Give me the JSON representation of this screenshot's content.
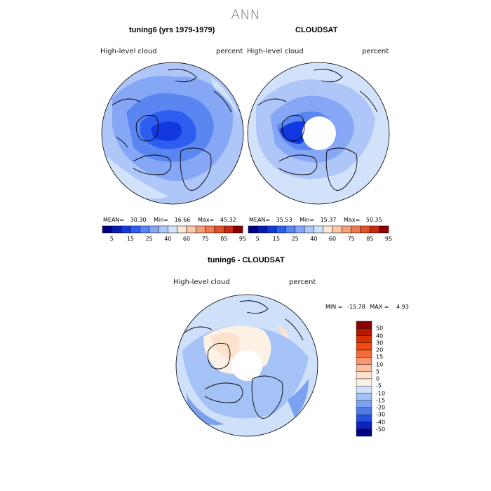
{
  "title": "ANN",
  "panels": [
    {
      "title": "tuning6 (yrs 1979-1979)",
      "variable": "High-level cloud",
      "units": "percent",
      "stats": {
        "mean_label": "MEAN=",
        "mean": "30.30",
        "min_label": "Min=",
        "min": "16.66",
        "max_label": "Max=",
        "max": "45.32"
      }
    },
    {
      "title": "CLOUDSAT",
      "variable": "High-level cloud",
      "units": "percent",
      "stats": {
        "mean_label": "MEAN=",
        "mean": "35.53",
        "min_label": "Min=",
        "min": "15.37",
        "max_label": "Max=",
        "max": "50.35"
      }
    },
    {
      "title": "tuning6 - CLOUDSAT",
      "variable": "High-level cloud",
      "units": "percent",
      "stats": {
        "min_label": "MIN =",
        "min": "-15.78",
        "max_label": "MAX =",
        "max": "4.93"
      }
    }
  ],
  "abs_colorbar": {
    "labels": [
      "5",
      "15",
      "25",
      "40",
      "60",
      "75",
      "85",
      "95"
    ],
    "colors": [
      "#000080",
      "#0a1ab4",
      "#1238e0",
      "#2d5ef0",
      "#5a86f2",
      "#86a7f5",
      "#aec6f8",
      "#d2e2fb",
      "#fbe7d6",
      "#f9c8a8",
      "#f4a07a",
      "#ee7a52",
      "#e4522c",
      "#c82a12",
      "#8b0000"
    ]
  },
  "diff_colorbar": {
    "labels": [
      "50",
      "40",
      "30",
      "20",
      "15",
      "10",
      "5",
      "0",
      "-5",
      "-10",
      "-15",
      "-20",
      "-30",
      "-40",
      "-50"
    ],
    "colors": [
      "#8b0000",
      "#b51a00",
      "#d83000",
      "#f04a14",
      "#f66a3a",
      "#f99770",
      "#fbbd9e",
      "#fde2cd",
      "#fbf1e4",
      "#cfe0fa",
      "#a4c2f5",
      "#7ba2f0",
      "#4f7cea",
      "#2850e0",
      "#0b24c0",
      "#000080"
    ]
  },
  "chart_data": [
    {
      "type": "heatmap",
      "projection": "polar stereographic (north)",
      "title": "tuning6 (yrs 1979-1979)",
      "variable": "High-level cloud",
      "units": "percent",
      "mean": 30.3,
      "min": 16.66,
      "max": 45.32,
      "contour_levels": [
        5,
        15,
        25,
        40,
        60,
        75,
        85,
        95
      ]
    },
    {
      "type": "heatmap",
      "projection": "polar stereographic (north)",
      "title": "CLOUDSAT",
      "variable": "High-level cloud",
      "units": "percent",
      "mean": 35.53,
      "min": 15.37,
      "max": 50.35,
      "contour_levels": [
        5,
        15,
        25,
        40,
        60,
        75,
        85,
        95
      ]
    },
    {
      "type": "heatmap",
      "projection": "polar stereographic (north)",
      "title": "tuning6 - CLOUDSAT",
      "variable": "High-level cloud",
      "units": "percent",
      "min": -15.78,
      "max": 4.93,
      "contour_levels": [
        50,
        40,
        30,
        20,
        15,
        10,
        5,
        0,
        -5,
        -10,
        -15,
        -20,
        -30,
        -40,
        -50
      ]
    }
  ]
}
